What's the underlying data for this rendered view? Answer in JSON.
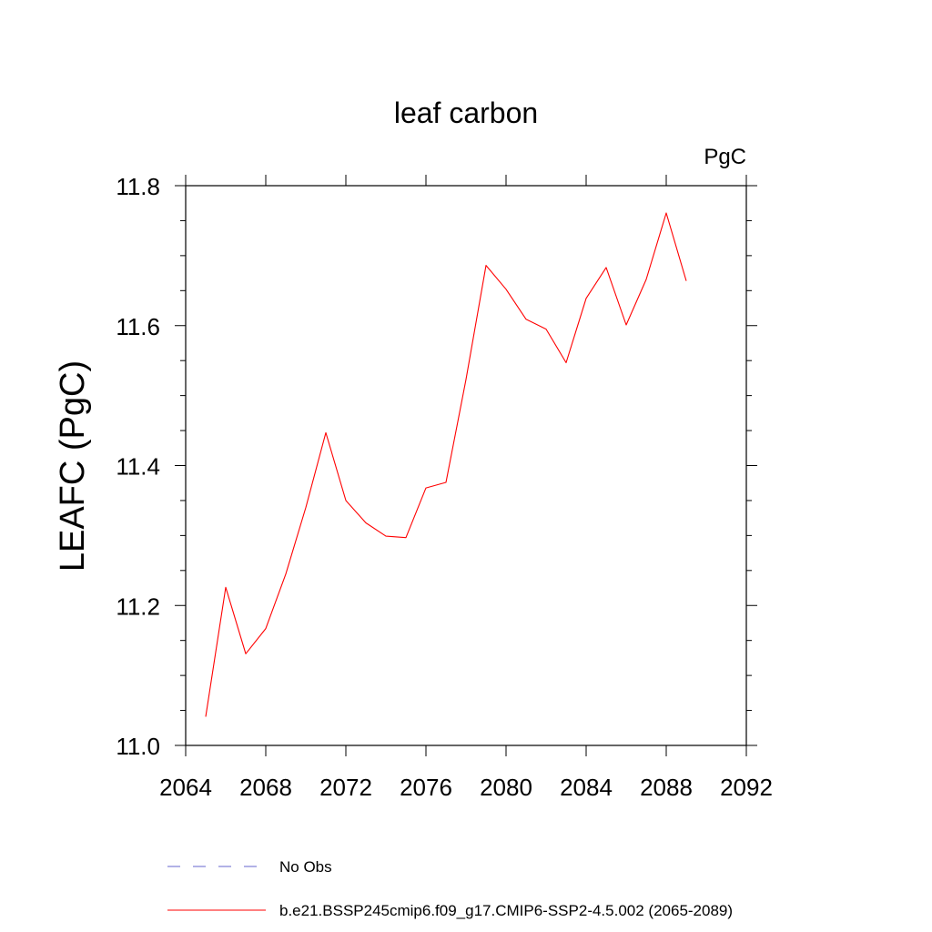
{
  "chart_data": {
    "type": "line",
    "title": "leaf carbon",
    "units": "PgC",
    "xlabel": "",
    "ylabel": "LEAFC  (PgC)",
    "xlim": [
      2064,
      2092
    ],
    "ylim": [
      11.0,
      11.8
    ],
    "xticks": [
      2064,
      2068,
      2072,
      2076,
      2080,
      2084,
      2088,
      2092
    ],
    "yticks": [
      11.0,
      11.2,
      11.4,
      11.6,
      11.8
    ],
    "xtick_labels": [
      "2064",
      "2068",
      "2072",
      "2076",
      "2080",
      "2084",
      "2088",
      "2092"
    ],
    "ytick_labels": [
      "11.0",
      "11.2",
      "11.4",
      "11.6",
      "11.8"
    ],
    "grid": false,
    "legend_position": "bottom",
    "series": [
      {
        "name": "b.e21.BSSP245cmip6.f09_g17.CMIP6-SSP2-4.5.002 (2065-2089)",
        "color": "#ff0000",
        "style": "solid",
        "x": [
          2065,
          2066,
          2067,
          2068,
          2069,
          2070,
          2071,
          2072,
          2073,
          2074,
          2075,
          2076,
          2077,
          2078,
          2079,
          2080,
          2081,
          2082,
          2083,
          2084,
          2085,
          2086,
          2087,
          2088,
          2089
        ],
        "y": [
          11.041,
          11.226,
          11.131,
          11.167,
          11.245,
          11.34,
          11.447,
          11.35,
          11.318,
          11.299,
          11.297,
          11.368,
          11.376,
          11.523,
          11.686,
          11.652,
          11.609,
          11.595,
          11.547,
          11.639,
          11.683,
          11.601,
          11.666,
          11.761,
          11.664
        ]
      }
    ],
    "legend": [
      {
        "label": "No Obs",
        "color": "#6666cc",
        "style": "dashed"
      },
      {
        "label": "b.e21.BSSP245cmip6.f09_g17.CMIP6-SSP2-4.5.002 (2065-2089)",
        "color": "#ff0000",
        "style": "solid"
      }
    ]
  }
}
